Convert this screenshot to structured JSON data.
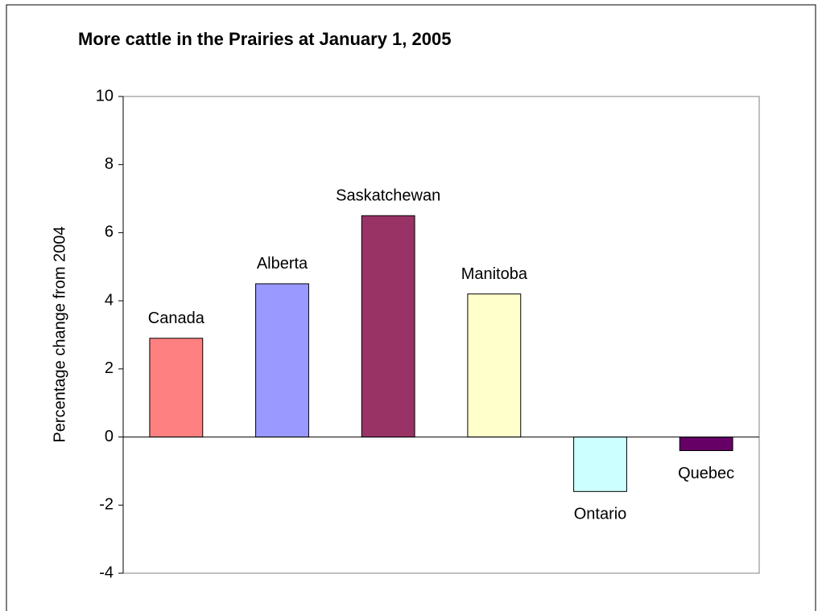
{
  "chart_data": {
    "type": "bar",
    "title": "More cattle in the Prairies at January 1, 2005",
    "y_label": "Percentage change from 2004",
    "categories": [
      "Canada",
      "Alberta",
      "Saskatchewan",
      "Manitoba",
      "Ontario",
      "Quebec"
    ],
    "values": [
      2.9,
      4.5,
      6.5,
      4.2,
      -1.6,
      -0.4
    ],
    "colors": [
      "#ff8080",
      "#9999ff",
      "#993366",
      "#ffffcc",
      "#ccffff",
      "#660066"
    ],
    "ylim": [
      -4,
      10
    ],
    "yticks": [
      -4,
      -2,
      0,
      2,
      4,
      6,
      8,
      10
    ],
    "grid": false
  }
}
